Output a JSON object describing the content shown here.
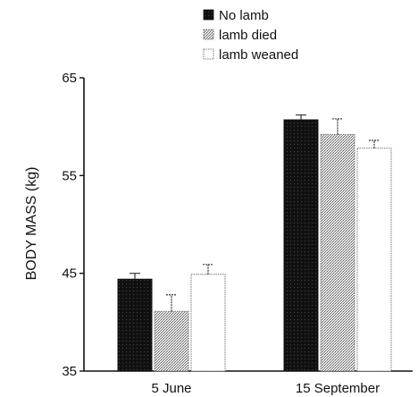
{
  "chart_data": {
    "type": "bar",
    "title": "",
    "xlabel": "",
    "ylabel": "BODY MASS (kg)",
    "ylim": [
      35,
      65
    ],
    "yticks": [
      35,
      45,
      55,
      65
    ],
    "categories": [
      "5 June",
      "15 September"
    ],
    "series": [
      {
        "name": "No lamb",
        "values": [
          44.4,
          60.7
        ],
        "error": [
          0.6,
          0.5
        ],
        "pattern": "solid"
      },
      {
        "name": "lamb died",
        "values": [
          41.1,
          59.2
        ],
        "error": [
          1.7,
          1.6
        ],
        "pattern": "dots"
      },
      {
        "name": "lamb weaned",
        "values": [
          44.9,
          57.8
        ],
        "error": [
          1.0,
          0.8
        ],
        "pattern": "white"
      }
    ],
    "legend_position": "top-center",
    "grid": false,
    "colors": {
      "solid": "#111111",
      "dots": "#9a9a9a",
      "white": "#ffffff",
      "axis": "#111111"
    }
  }
}
